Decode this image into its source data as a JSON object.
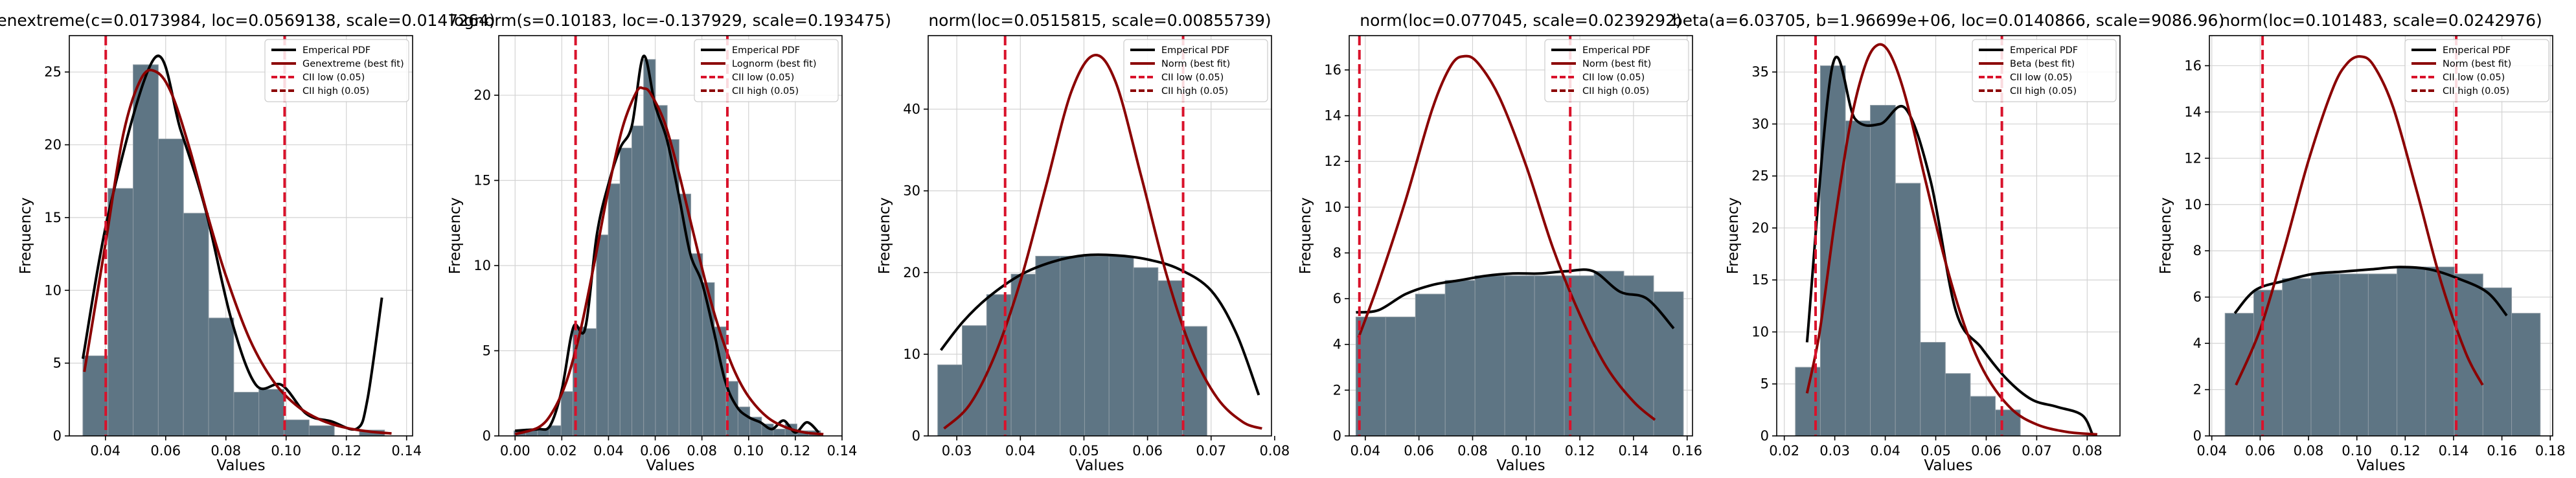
{
  "figure": {
    "colors": {
      "bar_fill": "#5e7584",
      "bar_edge": "#8e9ba4",
      "empirical": "#000000",
      "fit": "#8b0000",
      "ci": "#d9122b",
      "grid": "#d3d3d3"
    }
  },
  "chart_data": [
    {
      "type": "bar",
      "title": "genextreme(c=0.0173984, loc=0.0569138, scale=0.0147264)",
      "xlabel": "Values",
      "ylabel": "Frequency",
      "xlim": [
        0.028,
        0.142
      ],
      "ylim": [
        0,
        27.5
      ],
      "xticks": [
        0.04,
        0.06,
        0.08,
        0.1,
        0.12,
        0.14
      ],
      "xtick_labels": [
        "0.04",
        "0.06",
        "0.08",
        "0.10",
        "0.12",
        "0.14"
      ],
      "yticks": [
        0,
        5,
        10,
        15,
        20,
        25
      ],
      "ytick_labels": [
        "0",
        "5",
        "10",
        "15",
        "20",
        "25"
      ],
      "grid": true,
      "legend_position": "top-right",
      "legend": [
        "Emperical PDF",
        "Genextreme (best fit)",
        "CII low (0.05)",
        "CII high (0.05)"
      ],
      "bins": {
        "start": 0.0325,
        "width": 0.00835,
        "counts": [
          5.5,
          17,
          25.5,
          20.4,
          15.3,
          8.1,
          3.0,
          3.2,
          1.1,
          0.7,
          0,
          0.4
        ]
      },
      "series": [
        {
          "name": "Emperical PDF",
          "x": [
            0.0325,
            0.0418,
            0.0565,
            0.065,
            0.0733,
            0.0818,
            0.09,
            0.0985,
            0.1068,
            0.115,
            0.1235,
            0.127,
            0.1318
          ],
          "y": [
            5.3,
            16,
            26,
            21,
            15.5,
            8,
            3.5,
            3.5,
            1.5,
            1.0,
            0.5,
            2.5,
            9.5
          ]
        },
        {
          "name": "Genextreme (best fit)",
          "x": [
            0.033,
            0.04,
            0.046,
            0.052,
            0.057,
            0.062,
            0.068,
            0.074,
            0.08,
            0.088,
            0.096,
            0.104,
            0.112,
            0.12,
            0.128,
            0.135
          ],
          "y": [
            4.4,
            13.2,
            20.8,
            24.6,
            25.0,
            23.5,
            19.7,
            15.1,
            11.0,
            6.6,
            3.7,
            2.0,
            1.05,
            0.55,
            0.29,
            0.17
          ]
        }
      ],
      "ci_low": 0.0401,
      "ci_high": 0.0995
    },
    {
      "type": "bar",
      "title": "lognorm(s=0.10183, loc=-0.137929, scale=0.193475)",
      "xlabel": "Values",
      "ylabel": "Frequency",
      "xlim": [
        -0.007,
        0.14
      ],
      "ylim": [
        0,
        23.5
      ],
      "xticks": [
        0.0,
        0.02,
        0.04,
        0.06,
        0.08,
        0.1,
        0.12,
        0.14
      ],
      "xtick_labels": [
        "0.00",
        "0.02",
        "0.04",
        "0.06",
        "0.08",
        "0.10",
        "0.12",
        "0.14"
      ],
      "yticks": [
        0,
        5,
        10,
        15,
        20
      ],
      "ytick_labels": [
        "0",
        "5",
        "10",
        "15",
        "20"
      ],
      "grid": true,
      "legend_position": "top-right",
      "legend": [
        "Emperical PDF",
        "Lognorm (best fit)",
        "CII low (0.05)",
        "CII high (0.05)"
      ],
      "bins": {
        "start": -0.0005,
        "width": 0.00505,
        "counts": [
          0.3,
          0.4,
          0.4,
          0.6,
          2.6,
          6.4,
          6.3,
          11.8,
          14.8,
          16.9,
          18.2,
          22.1,
          19.4,
          17.4,
          14.2,
          10.7,
          9.0,
          6.4,
          3.2,
          1.7,
          1.1,
          0.7,
          0.4,
          0.7,
          0.3,
          0.3
        ]
      },
      "series": [
        {
          "name": "Emperical PDF",
          "x": [
            0.0,
            0.005,
            0.01,
            0.015,
            0.02,
            0.025,
            0.03,
            0.035,
            0.04,
            0.045,
            0.05,
            0.055,
            0.06,
            0.065,
            0.07,
            0.075,
            0.08,
            0.085,
            0.09,
            0.095,
            0.1,
            0.105,
            0.11,
            0.115,
            0.12,
            0.125,
            0.13
          ],
          "y": [
            0.3,
            0.35,
            0.4,
            0.6,
            2.7,
            6.4,
            6.3,
            11.8,
            14.8,
            16.9,
            18.2,
            22.3,
            19.4,
            17.4,
            14.2,
            10.7,
            9.0,
            6.2,
            3.2,
            1.7,
            1.1,
            0.8,
            0.4,
            0.9,
            0.2,
            0.8,
            0.2
          ]
        },
        {
          "name": "Lognorm (best fit)",
          "x": [
            0.0,
            0.01,
            0.016,
            0.022,
            0.028,
            0.034,
            0.04,
            0.046,
            0.052,
            0.055,
            0.058,
            0.064,
            0.07,
            0.076,
            0.082,
            0.088,
            0.094,
            0.1,
            0.108,
            0.116,
            0.124,
            0.132
          ],
          "y": [
            0.1,
            0.5,
            1.4,
            3.2,
            6.2,
            10.2,
            14.5,
            18.1,
            20.2,
            20.4,
            20.1,
            18.4,
            15.5,
            12.1,
            8.8,
            6.0,
            3.8,
            2.3,
            1.1,
            0.5,
            0.2,
            0.1
          ]
        }
      ],
      "ci_low": 0.0259,
      "ci_high": 0.0909
    },
    {
      "type": "bar",
      "title": "norm(loc=0.0515815, scale=0.00855739)",
      "xlabel": "Values",
      "ylabel": "Frequency",
      "xlim": [
        0.0255,
        0.0795
      ],
      "ylim": [
        0,
        49
      ],
      "xticks": [
        0.03,
        0.04,
        0.05,
        0.06,
        0.07,
        0.08
      ],
      "xtick_labels": [
        "0.03",
        "0.04",
        "0.05",
        "0.06",
        "0.07",
        "0.08"
      ],
      "yticks": [
        0,
        10,
        20,
        30,
        40
      ],
      "ytick_labels": [
        "0",
        "10",
        "20",
        "30",
        "40"
      ],
      "grid": true,
      "legend_position": "top-right",
      "legend": [
        "Emperical PDF",
        "Norm (best fit)",
        "CII low (0.05)",
        "CII high (0.05)"
      ],
      "bins": {
        "start": 0.027,
        "width": 0.00385,
        "counts": [
          8.7,
          13.5,
          17.3,
          19.8,
          22.0,
          22.0,
          22.0,
          22.0,
          20.6,
          19.0,
          13.4,
          0
        ]
      },
      "series": [
        {
          "name": "Emperical PDF",
          "x": [
            0.0275,
            0.031,
            0.035,
            0.04,
            0.045,
            0.05,
            0.055,
            0.06,
            0.065,
            0.07,
            0.074,
            0.0775
          ],
          "y": [
            10.5,
            14.0,
            17.0,
            19.7,
            21.3,
            22.1,
            22.1,
            21.6,
            20.4,
            17.8,
            12.5,
            5.0
          ]
        },
        {
          "name": "Norm (best fit)",
          "x": [
            0.028,
            0.032,
            0.036,
            0.04,
            0.044,
            0.048,
            0.0516,
            0.055,
            0.059,
            0.063,
            0.067,
            0.071,
            0.075,
            0.078
          ],
          "y": [
            0.9,
            3.8,
            9.9,
            18.9,
            30.5,
            42.1,
            46.6,
            43.3,
            31.8,
            19.7,
            10.4,
            4.6,
            1.7,
            0.9
          ]
        }
      ],
      "ci_low": 0.0376,
      "ci_high": 0.0656
    },
    {
      "type": "bar",
      "title": "norm(loc=0.077045, scale=0.0239292)",
      "xlabel": "Values",
      "ylabel": "Frequency",
      "xlim": [
        0.034,
        0.162
      ],
      "ylim": [
        0,
        17.5
      ],
      "xticks": [
        0.04,
        0.06,
        0.08,
        0.1,
        0.12,
        0.14,
        0.16
      ],
      "xtick_labels": [
        "0.04",
        "0.06",
        "0.08",
        "0.10",
        "0.12",
        "0.14",
        "0.16"
      ],
      "yticks": [
        0,
        2,
        4,
        6,
        8,
        10,
        12,
        14,
        16
      ],
      "ytick_labels": [
        "0",
        "2",
        "4",
        "6",
        "8",
        "10",
        "12",
        "14",
        "16"
      ],
      "grid": true,
      "legend_position": "top-right",
      "legend": [
        "Emperical PDF",
        "Norm (best fit)",
        "CII low (0.05)",
        "CII high (0.05)"
      ],
      "bins": {
        "start": 0.0365,
        "width": 0.0111,
        "counts": [
          5.2,
          5.2,
          6.2,
          6.8,
          7.0,
          7.0,
          7.0,
          7.0,
          7.2,
          7.0,
          6.3
        ]
      },
      "series": [
        {
          "name": "Emperical PDF",
          "x": [
            0.0365,
            0.045,
            0.055,
            0.065,
            0.075,
            0.085,
            0.095,
            0.105,
            0.115,
            0.125,
            0.135,
            0.145,
            0.155
          ],
          "y": [
            5.4,
            5.5,
            6.2,
            6.6,
            6.8,
            7.0,
            7.1,
            7.1,
            7.2,
            7.2,
            6.3,
            6.0,
            4.7
          ]
        },
        {
          "name": "Norm (best fit)",
          "x": [
            0.0375,
            0.045,
            0.055,
            0.065,
            0.072,
            0.077,
            0.082,
            0.09,
            0.1,
            0.11,
            0.12,
            0.13,
            0.14,
            0.148
          ],
          "y": [
            4.3,
            6.7,
            10.3,
            14.3,
            16.2,
            16.6,
            16.3,
            14.8,
            11.8,
            8.2,
            5.3,
            3.0,
            1.5,
            0.7
          ]
        }
      ],
      "ci_low": 0.0378,
      "ci_high": 0.1164
    },
    {
      "type": "bar",
      "title": "beta(a=6.03705, b=1.96699e+06, loc=0.0140866, scale=9086.96)",
      "xlabel": "Values",
      "ylabel": "Frequency",
      "xlim": [
        0.0185,
        0.0865
      ],
      "ylim": [
        0,
        38.5
      ],
      "xticks": [
        0.02,
        0.03,
        0.04,
        0.05,
        0.06,
        0.07,
        0.08
      ],
      "xtick_labels": [
        "0.02",
        "0.03",
        "0.04",
        "0.05",
        "0.06",
        "0.07",
        "0.08"
      ],
      "yticks": [
        0,
        5,
        10,
        15,
        20,
        25,
        30,
        35
      ],
      "ytick_labels": [
        "0",
        "5",
        "10",
        "15",
        "20",
        "25",
        "30",
        "35"
      ],
      "grid": true,
      "legend_position": "top-right",
      "legend": [
        "Emperical PDF",
        "Beta (best fit)",
        "CII low (0.05)",
        "CII high (0.05)"
      ],
      "bins": {
        "start": 0.0222,
        "width": 0.00495,
        "counts": [
          6.6,
          35.6,
          30.3,
          31.8,
          24.3,
          9.0,
          6.0,
          3.8,
          2.5
        ]
      },
      "series": [
        {
          "name": "Emperical PDF",
          "x": [
            0.0245,
            0.0295,
            0.034,
            0.039,
            0.044,
            0.049,
            0.054,
            0.059,
            0.064,
            0.069,
            0.074,
            0.079,
            0.081
          ],
          "y": [
            9.0,
            35.5,
            30.5,
            30.0,
            31.5,
            24.5,
            12.0,
            8.5,
            5.5,
            3.5,
            2.8,
            2.0,
            0.2
          ]
        },
        {
          "name": "Beta (best fit)",
          "x": [
            0.0245,
            0.027,
            0.03,
            0.033,
            0.036,
            0.0385,
            0.041,
            0.044,
            0.048,
            0.052,
            0.056,
            0.06,
            0.065,
            0.07,
            0.076,
            0.082
          ],
          "y": [
            4.1,
            10.0,
            20.6,
            29.8,
            35.6,
            37.6,
            36.7,
            32.6,
            24.5,
            16.6,
            10.2,
            5.8,
            2.6,
            1.1,
            0.38,
            0.14
          ]
        }
      ],
      "ci_low": 0.0262,
      "ci_high": 0.0631
    },
    {
      "type": "bar",
      "title": "norm(loc=0.101483, scale=0.0242976)",
      "xlabel": "Values",
      "ylabel": "Frequency",
      "xlim": [
        0.039,
        0.181
      ],
      "ylim": [
        0,
        17.3
      ],
      "xticks": [
        0.04,
        0.06,
        0.08,
        0.1,
        0.12,
        0.14,
        0.16,
        0.18
      ],
      "xtick_labels": [
        "0.04",
        "0.06",
        "0.08",
        "0.10",
        "0.12",
        "0.14",
        "0.16",
        "0.18"
      ],
      "yticks": [
        0,
        2,
        4,
        6,
        8,
        10,
        12,
        14,
        16
      ],
      "ytick_labels": [
        "0",
        "2",
        "4",
        "6",
        "8",
        "10",
        "12",
        "14",
        "16"
      ],
      "grid": true,
      "legend_position": "top-right",
      "legend": [
        "Emperical PDF",
        "Norm (best fit)",
        "CII low (0.05)",
        "CII high (0.05)"
      ],
      "bins": {
        "start": 0.0455,
        "width": 0.01185,
        "counts": [
          5.3,
          6.3,
          6.8,
          7.0,
          7.0,
          7.0,
          7.3,
          7.3,
          7.0,
          6.4,
          5.3
        ]
      },
      "series": [
        {
          "name": "Emperical PDF",
          "x": [
            0.0495,
            0.058,
            0.07,
            0.082,
            0.094,
            0.106,
            0.118,
            0.13,
            0.142,
            0.154,
            0.162
          ],
          "y": [
            5.3,
            6.3,
            6.7,
            7.0,
            7.1,
            7.2,
            7.3,
            7.2,
            6.8,
            6.2,
            5.2
          ]
        },
        {
          "name": "Norm (best fit)",
          "x": [
            0.05,
            0.06,
            0.07,
            0.08,
            0.09,
            0.096,
            0.1015,
            0.107,
            0.115,
            0.125,
            0.135,
            0.145,
            0.152
          ],
          "y": [
            2.2,
            4.6,
            8.1,
            11.9,
            15.0,
            16.1,
            16.4,
            16.0,
            14.2,
            10.5,
            6.6,
            3.6,
            2.2
          ]
        }
      ],
      "ci_low": 0.061,
      "ci_high": 0.1411
    }
  ]
}
